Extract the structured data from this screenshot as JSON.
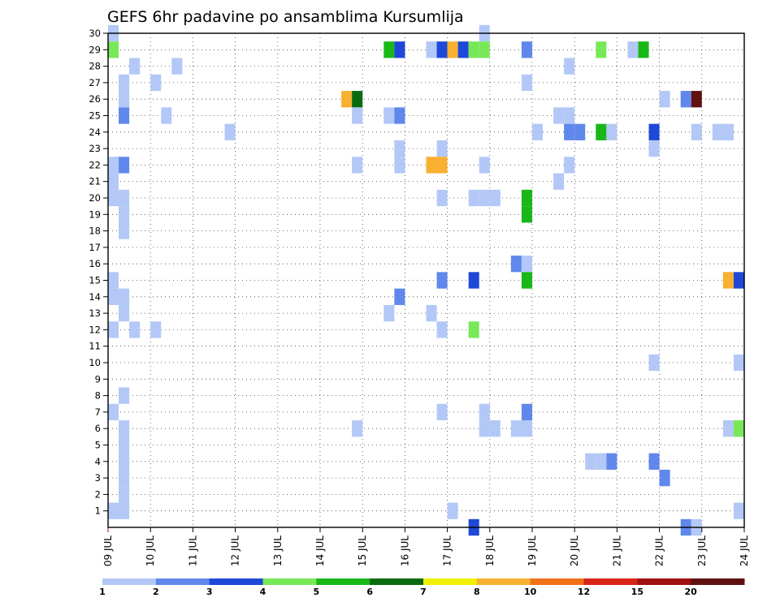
{
  "chart_data": {
    "type": "heatmap",
    "title": "GEFS 6hr padavine po ansamblima Kursumlija",
    "x_ticks": [
      "09 JUL",
      "10 JUL",
      "11 JUL",
      "12 JUL",
      "13 JUL",
      "14 JUL",
      "15 JUL",
      "16 JUL",
      "17 JUL",
      "18 JUL",
      "19 JUL",
      "20 JUL",
      "21 JUL",
      "22 JUL",
      "23 JUL",
      "24 JUL"
    ],
    "x_range_days": [
      9,
      24
    ],
    "y_ticks": [
      "1",
      "2",
      "3",
      "4",
      "5",
      "6",
      "7",
      "8",
      "9",
      "10",
      "11",
      "12",
      "13",
      "14",
      "15",
      "16",
      "17",
      "18",
      "19",
      "20",
      "21",
      "22",
      "23",
      "24",
      "25",
      "26",
      "27",
      "28",
      "29",
      "30"
    ],
    "y_range": [
      0,
      30
    ],
    "grid": "dotted",
    "colorbar": {
      "labels": [
        "1",
        "2",
        "3",
        "4",
        "5",
        "6",
        "7",
        "8",
        "10",
        "12",
        "15",
        "20"
      ],
      "colors": [
        "#b3c8f7",
        "#6088ec",
        "#1e48d8",
        "#78e858",
        "#18b818",
        "#0a6a10",
        "#f0f000",
        "#f8b030",
        "#f07018",
        "#d82418",
        "#a01010",
        "#601010"
      ]
    },
    "cells_by_member": [
      {
        "m": 30,
        "cells": [
          [
            9.25,
            1
          ],
          [
            18.0,
            1
          ]
        ]
      },
      {
        "m": 29,
        "cells": [
          [
            9.25,
            4
          ],
          [
            15.75,
            5
          ],
          [
            16.0,
            3
          ],
          [
            16.75,
            1
          ],
          [
            17.0,
            3
          ],
          [
            17.25,
            8
          ],
          [
            17.5,
            3
          ],
          [
            17.75,
            4
          ],
          [
            18.0,
            4
          ],
          [
            19.0,
            2
          ],
          [
            20.75,
            4
          ],
          [
            21.5,
            1
          ],
          [
            21.75,
            5
          ]
        ]
      },
      {
        "m": 28,
        "cells": [
          [
            9.75,
            1
          ],
          [
            10.75,
            1
          ],
          [
            20.0,
            1
          ]
        ]
      },
      {
        "m": 27,
        "cells": [
          [
            9.5,
            1
          ],
          [
            10.25,
            1
          ],
          [
            19.0,
            1
          ]
        ]
      },
      {
        "m": 26,
        "cells": [
          [
            9.5,
            1
          ],
          [
            14.75,
            8
          ],
          [
            15.0,
            6
          ],
          [
            22.25,
            1
          ],
          [
            22.75,
            2
          ],
          [
            23.0,
            12
          ]
        ]
      },
      {
        "m": 25,
        "cells": [
          [
            9.5,
            2
          ],
          [
            10.5,
            1
          ],
          [
            15.0,
            1
          ],
          [
            15.75,
            1
          ],
          [
            16.0,
            2
          ],
          [
            19.75,
            1
          ],
          [
            20.0,
            1
          ]
        ]
      },
      {
        "m": 24,
        "cells": [
          [
            12.0,
            1
          ],
          [
            19.25,
            1
          ],
          [
            20.0,
            2
          ],
          [
            20.25,
            2
          ],
          [
            20.75,
            5
          ],
          [
            21.0,
            1
          ],
          [
            22.0,
            3
          ],
          [
            23.0,
            1
          ],
          [
            23.5,
            1
          ],
          [
            23.75,
            1
          ]
        ]
      },
      {
        "m": 23,
        "cells": [
          [
            16.0,
            1
          ],
          [
            17.0,
            1
          ],
          [
            22.0,
            1
          ]
        ]
      },
      {
        "m": 22,
        "cells": [
          [
            9.25,
            1
          ],
          [
            9.5,
            2
          ],
          [
            15.0,
            1
          ],
          [
            16.0,
            1
          ],
          [
            16.75,
            8
          ],
          [
            17.0,
            8
          ],
          [
            18.0,
            1
          ],
          [
            20.0,
            1
          ]
        ]
      },
      {
        "m": 21,
        "cells": [
          [
            9.25,
            1
          ],
          [
            19.75,
            1
          ]
        ]
      },
      {
        "m": 20,
        "cells": [
          [
            9.25,
            1
          ],
          [
            9.5,
            1
          ],
          [
            17.0,
            1
          ],
          [
            17.75,
            1
          ],
          [
            18.0,
            1
          ],
          [
            18.25,
            1
          ],
          [
            19.0,
            5
          ]
        ]
      },
      {
        "m": 19,
        "cells": [
          [
            9.5,
            1
          ],
          [
            19.0,
            5
          ]
        ]
      },
      {
        "m": 18,
        "cells": [
          [
            9.5,
            1
          ]
        ]
      },
      {
        "m": 16,
        "cells": [
          [
            18.75,
            2
          ],
          [
            19.0,
            1
          ]
        ]
      },
      {
        "m": 15,
        "cells": [
          [
            9.25,
            1
          ],
          [
            17.0,
            2
          ],
          [
            17.75,
            3
          ],
          [
            19.0,
            5
          ],
          [
            23.75,
            8
          ],
          [
            24.0,
            3
          ]
        ]
      },
      {
        "m": 14,
        "cells": [
          [
            9.25,
            1
          ],
          [
            9.5,
            1
          ],
          [
            16.0,
            2
          ]
        ]
      },
      {
        "m": 13,
        "cells": [
          [
            9.5,
            1
          ],
          [
            15.75,
            1
          ],
          [
            16.75,
            1
          ]
        ]
      },
      {
        "m": 12,
        "cells": [
          [
            9.25,
            1
          ],
          [
            9.75,
            1
          ],
          [
            10.25,
            1
          ],
          [
            17.0,
            1
          ],
          [
            17.75,
            4
          ]
        ]
      },
      {
        "m": 10,
        "cells": [
          [
            22.0,
            1
          ],
          [
            24.0,
            1
          ]
        ]
      },
      {
        "m": 8,
        "cells": [
          [
            9.5,
            1
          ]
        ]
      },
      {
        "m": 7,
        "cells": [
          [
            9.25,
            1
          ],
          [
            17.0,
            1
          ],
          [
            18.0,
            1
          ],
          [
            19.0,
            2
          ]
        ]
      },
      {
        "m": 6,
        "cells": [
          [
            9.5,
            1
          ],
          [
            15.0,
            1
          ],
          [
            18.0,
            1
          ],
          [
            18.25,
            1
          ],
          [
            18.75,
            1
          ],
          [
            19.0,
            1
          ],
          [
            23.75,
            1
          ],
          [
            24.0,
            4
          ]
        ]
      },
      {
        "m": 5,
        "cells": [
          [
            9.5,
            1
          ]
        ]
      },
      {
        "m": 4,
        "cells": [
          [
            9.5,
            1
          ],
          [
            20.5,
            1
          ],
          [
            20.75,
            1
          ],
          [
            21.0,
            2
          ],
          [
            22.0,
            2
          ]
        ]
      },
      {
        "m": 3,
        "cells": [
          [
            9.5,
            1
          ],
          [
            22.25,
            2
          ]
        ]
      },
      {
        "m": 2,
        "cells": [
          [
            9.5,
            1
          ]
        ]
      },
      {
        "m": 1,
        "cells": [
          [
            9.25,
            1
          ],
          [
            9.5,
            1
          ],
          [
            17.25,
            1
          ],
          [
            24.0,
            1
          ]
        ]
      },
      {
        "m": 0,
        "cells": [
          [
            17.75,
            3
          ],
          [
            22.75,
            2
          ],
          [
            23.0,
            1
          ]
        ]
      }
    ]
  }
}
